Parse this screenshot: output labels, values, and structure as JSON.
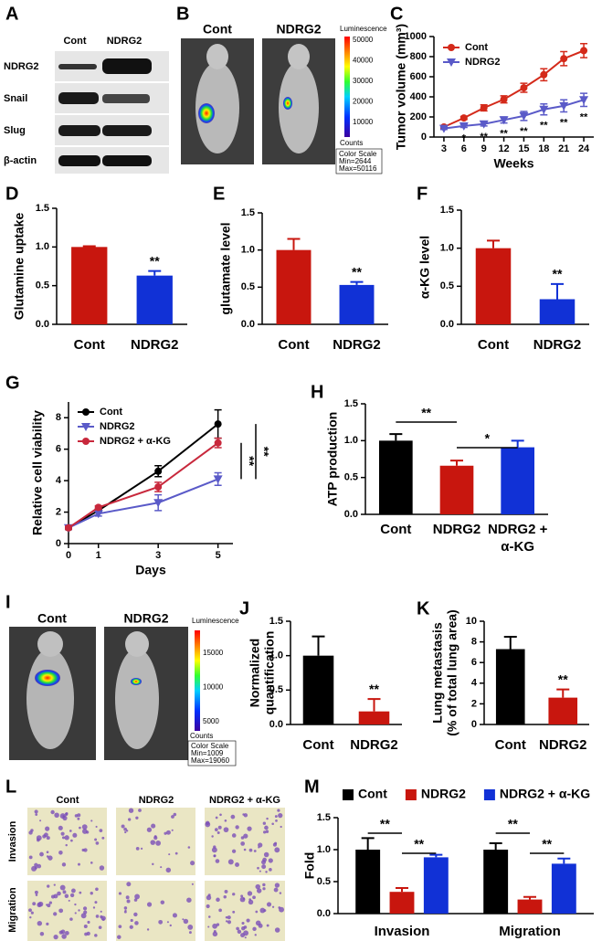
{
  "panels": {
    "A": {
      "label": "A",
      "columns": [
        "Cont",
        "NDRG2"
      ],
      "rows": [
        "NDRG2",
        "Snail",
        "Slug",
        "β-actin"
      ]
    },
    "B": {
      "label": "B",
      "columns": [
        "Cont",
        "NDRG2"
      ],
      "scale_title": "Luminescence",
      "scale_ticks": [
        50000,
        40000,
        30000,
        20000,
        10000
      ],
      "scale_unit": "Counts",
      "scale_info": [
        "Color Scale",
        "Min=2644",
        "Max=50116"
      ]
    },
    "I": {
      "label": "I",
      "columns": [
        "Cont",
        "NDRG2"
      ],
      "scale_title": "Luminescence",
      "scale_ticks": [
        15000,
        10000,
        5000
      ],
      "scale_unit": "Counts",
      "scale_info": [
        "Color Scale",
        "Min=1009",
        "Max=19060"
      ]
    },
    "L": {
      "label": "L",
      "columns": [
        "Cont",
        "NDRG2",
        "NDRG2 + α-KG"
      ],
      "rows": [
        "Invasion",
        "Migration"
      ]
    }
  },
  "chart_data": [
    {
      "label": "C",
      "type": "line",
      "ylabel": "Tumor volume (mm³)",
      "xlabel": "Weeks",
      "x": [
        3,
        6,
        9,
        12,
        15,
        18,
        21,
        24
      ],
      "xlim": [
        1.5,
        25.5
      ],
      "xticks": [
        3,
        6,
        9,
        12,
        15,
        18,
        21,
        24
      ],
      "ylim": [
        0,
        1000
      ],
      "yticks": [
        0,
        200,
        400,
        600,
        800,
        1000
      ],
      "legend": "upper left",
      "series": [
        {
          "name": "Cont",
          "color": "#d42a1a",
          "marker": "circle",
          "values": [
            100,
            190,
            290,
            375,
            490,
            620,
            780,
            860
          ],
          "errors": [
            10,
            15,
            30,
            35,
            45,
            60,
            70,
            70
          ]
        },
        {
          "name": "NDRG2",
          "color": "#5a5ac8",
          "marker": "triangle-down",
          "values": [
            85,
            110,
            130,
            170,
            210,
            275,
            310,
            370
          ],
          "errors": [
            10,
            15,
            20,
            30,
            45,
            55,
            60,
            65
          ]
        }
      ],
      "annotations": [
        null,
        "*",
        "**",
        "**",
        "**",
        "**",
        "**",
        "**"
      ]
    },
    {
      "label": "D",
      "type": "bar",
      "ylabel": "Glutamine uptake",
      "categories": [
        "Cont",
        "NDRG2"
      ],
      "values": [
        1.0,
        0.63
      ],
      "errors": [
        0.01,
        0.06
      ],
      "colors": [
        "#c8160e",
        "#1131d6"
      ],
      "ylim": [
        0,
        1.5
      ],
      "yticks": [
        {
          "value": 0,
          "label": "0.0"
        },
        0.5,
        {
          "value": 1,
          "label": "1.0"
        },
        1.5
      ],
      "annotations": [
        null,
        "**"
      ]
    },
    {
      "label": "E",
      "type": "bar",
      "ylabel": "glutamate level",
      "categories": [
        "Cont",
        "NDRG2"
      ],
      "values": [
        1.0,
        0.53
      ],
      "errors": [
        0.15,
        0.04
      ],
      "colors": [
        "#c8160e",
        "#1131d6"
      ],
      "ylim": [
        0,
        1.5
      ],
      "yticks": [
        {
          "value": 0,
          "label": "0.0"
        },
        0.5,
        {
          "value": 1,
          "label": "1.0"
        },
        1.5
      ],
      "annotations": [
        null,
        "**"
      ]
    },
    {
      "label": "F",
      "type": "bar",
      "ylabel": "α-KG level",
      "categories": [
        "Cont",
        "NDRG2"
      ],
      "values": [
        1.0,
        0.33
      ],
      "errors": [
        0.1,
        0.2
      ],
      "colors": [
        "#c8160e",
        "#1131d6"
      ],
      "ylim": [
        0,
        1.5
      ],
      "yticks": [
        {
          "value": 0,
          "label": "0.0"
        },
        0.5,
        {
          "value": 1,
          "label": "1.0"
        },
        1.5
      ],
      "annotations": [
        null,
        "**"
      ]
    },
    {
      "label": "G",
      "type": "line",
      "ylabel": "Relative cell viability",
      "xlabel": "Days",
      "x": [
        0,
        1,
        3,
        5
      ],
      "xlim": [
        0,
        5.5
      ],
      "xticks": [
        0,
        1,
        3,
        5
      ],
      "ylim": [
        0,
        9
      ],
      "yticks": [
        0,
        2,
        4,
        6,
        8
      ],
      "legend": "upper left",
      "series": [
        {
          "name": "Cont",
          "color": "#000000",
          "marker": "circle",
          "values": [
            1,
            2.1,
            4.6,
            7.6
          ],
          "errors": [
            0.1,
            0.1,
            0.35,
            0.9
          ]
        },
        {
          "name": "NDRG2",
          "color": "#5a5ac8",
          "marker": "triangle-down",
          "values": [
            1,
            1.9,
            2.6,
            4.1
          ],
          "errors": [
            0.1,
            0.15,
            0.5,
            0.4
          ]
        },
        {
          "name": "NDRG2 + α-KG",
          "color": "#c8283c",
          "marker": "circle",
          "values": [
            1,
            2.3,
            3.6,
            6.4
          ],
          "errors": [
            0.1,
            0.1,
            0.3,
            0.3
          ]
        }
      ],
      "annotations": [
        "**",
        "**"
      ]
    },
    {
      "label": "H",
      "type": "bar",
      "ylabel": "ATP production",
      "categories": [
        "Cont",
        "NDRG2",
        "NDRG2 + α-KG"
      ],
      "values": [
        1.0,
        0.66,
        0.91
      ],
      "errors": [
        0.09,
        0.07,
        0.09
      ],
      "colors": [
        "#000000",
        "#c8160e",
        "#1131d6"
      ],
      "ylim": [
        0,
        1.5
      ],
      "yticks": [
        {
          "value": 0,
          "label": "0.0"
        },
        0.5,
        {
          "value": 1,
          "label": "1.0"
        },
        1.5
      ],
      "annotations": [
        "**",
        "*"
      ]
    },
    {
      "label": "J",
      "type": "bar",
      "ylabel": [
        "Normalized",
        "quantification"
      ],
      "categories": [
        "Cont",
        "NDRG2"
      ],
      "values": [
        1.0,
        0.19
      ],
      "errors": [
        0.28,
        0.18
      ],
      "colors": [
        "#000000",
        "#c8160e"
      ],
      "ylim": [
        0,
        1.5
      ],
      "yticks": [
        {
          "value": 0,
          "label": "0.0"
        },
        0.5,
        {
          "value": 1,
          "label": "1.0"
        },
        1.5
      ],
      "annotations": [
        null,
        "**"
      ]
    },
    {
      "label": "K",
      "type": "bar",
      "ylabel": [
        "Lung metastasis",
        "(% of total lung area)"
      ],
      "categories": [
        "Cont",
        "NDRG2"
      ],
      "values": [
        7.3,
        2.6
      ],
      "errors": [
        1.2,
        0.8
      ],
      "colors": [
        "#000000",
        "#c8160e"
      ],
      "ylim": [
        0,
        10
      ],
      "yticks": [
        0,
        2,
        4,
        6,
        8,
        10
      ],
      "annotations": [
        null,
        "**"
      ]
    },
    {
      "label": "M",
      "type": "bar",
      "ylabel": "Fold",
      "categories": [
        "Invasion",
        "Migration"
      ],
      "legend": "top",
      "series": [
        {
          "name": "Cont",
          "color": "#000000",
          "values": [
            1.0,
            1.0
          ],
          "errors": [
            0.18,
            0.1
          ]
        },
        {
          "name": "NDRG2",
          "color": "#c8160e",
          "values": [
            0.34,
            0.22
          ],
          "errors": [
            0.06,
            0.04
          ]
        },
        {
          "name": "NDRG2 + α-KG",
          "color": "#1131d6",
          "values": [
            0.88,
            0.78
          ],
          "errors": [
            0.04,
            0.08
          ]
        }
      ],
      "ylim": [
        0,
        1.5
      ],
      "yticks": [
        {
          "value": 0,
          "label": "0.0"
        },
        0.5,
        {
          "value": 1,
          "label": "1.0"
        },
        1.5
      ],
      "annotations": [
        "**",
        "**",
        "**",
        "**"
      ]
    }
  ]
}
